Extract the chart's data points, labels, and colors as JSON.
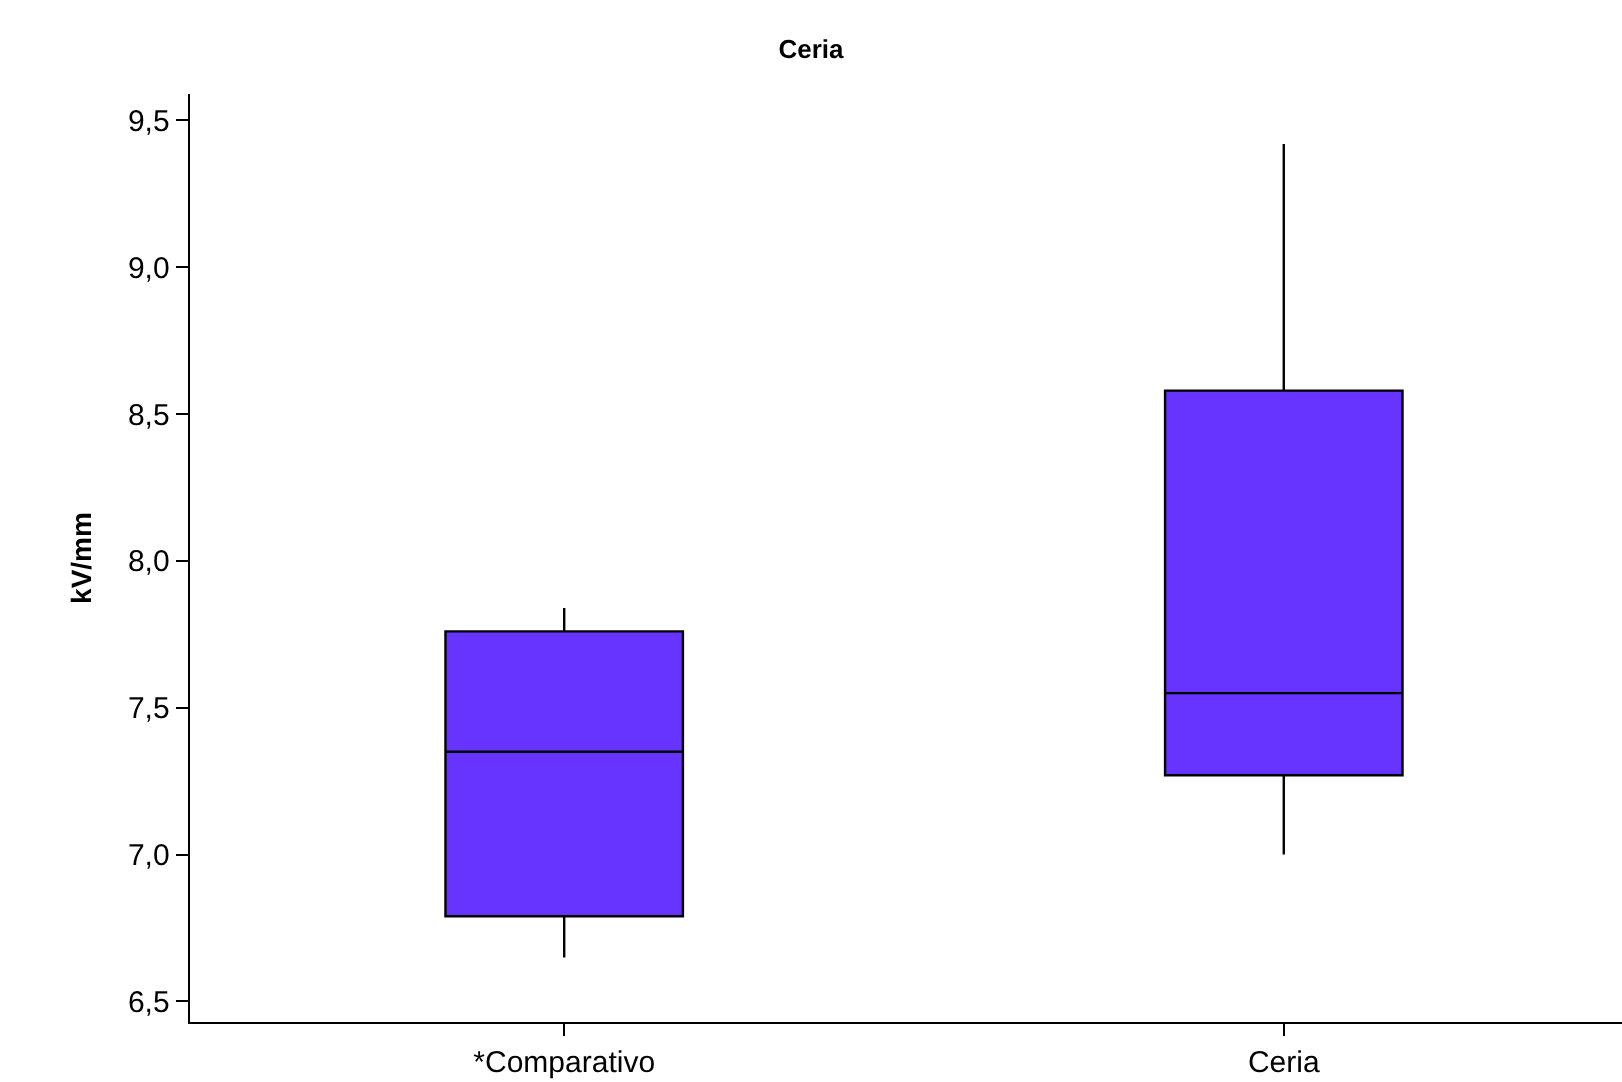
{
  "chart_data": {
    "type": "box",
    "title": "Ceria",
    "ylabel": "kV/mm",
    "categories": [
      "*Comparativo",
      "Ceria"
    ],
    "series": [
      {
        "color": "#6633ff",
        "boxes": [
          {
            "low": 6.65,
            "q1": 6.79,
            "median": 7.35,
            "q3": 7.76,
            "high": 7.84
          },
          {
            "low": 7.0,
            "q1": 7.27,
            "median": 7.55,
            "q3": 8.58,
            "high": 9.42
          }
        ]
      }
    ],
    "ylim": [
      6.43,
      9.59
    ],
    "yticks": [
      {
        "value": 6.5,
        "label": "6,5"
      },
      {
        "value": 7,
        "label": "7,0"
      },
      {
        "value": 7.5,
        "label": "7,5"
      },
      {
        "value": 8,
        "label": "8,0"
      },
      {
        "value": 8.5,
        "label": "8,5"
      },
      {
        "value": 9,
        "label": "9,0"
      },
      {
        "value": 9.5,
        "label": "9,5"
      }
    ],
    "grid": false
  }
}
